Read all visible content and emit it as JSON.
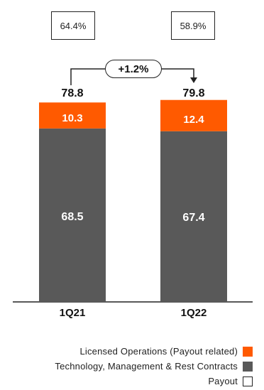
{
  "colors": {
    "licensed": "#ff5a00",
    "technology": "#595959",
    "payout_border": "#222222"
  },
  "chart_data": {
    "type": "bar",
    "stacked": true,
    "categories": [
      "1Q21",
      "1Q22"
    ],
    "series": [
      {
        "name": "Technology, Management & Rest Contracts",
        "values": [
          68.5,
          67.4
        ],
        "labels": [
          "68.5",
          "67.4"
        ]
      },
      {
        "name": "Licensed Operations (Payout related)",
        "values": [
          10.3,
          12.4
        ],
        "labels": [
          "10.3",
          "12.4"
        ]
      }
    ],
    "totals": [
      "78.8",
      "79.8"
    ],
    "payout": [
      "64.4%",
      "58.9%"
    ],
    "growth": "+1.2%",
    "ylim": [
      0,
      90
    ],
    "legend": [
      "Licensed Operations (Payout related)",
      "Technology, Management & Rest Contracts",
      "Payout"
    ],
    "legend_position": "bottom-right"
  }
}
